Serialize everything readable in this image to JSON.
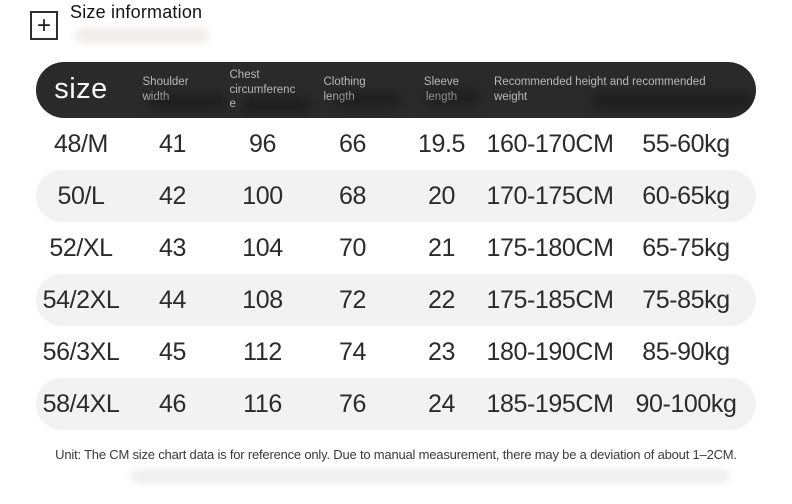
{
  "page": {
    "title": "Size information",
    "note": "Unit: The CM size chart data is for reference only. Due to manual measurement, there may be a deviation of about 1–2CM."
  },
  "icons": {
    "plus_icon": "+"
  },
  "colors": {
    "header_bg": "#2a2a2a",
    "header_text": "#b9b9b9",
    "row_stripe": "#f2f2f2",
    "body_text": "#2b2b2b"
  },
  "table": {
    "header": {
      "size": "size",
      "shoulder": "Shoulder width",
      "chest": "Chest circumference",
      "clothing": "Clothing length",
      "sleeve": "Sleeve length",
      "recommended": "Recommended height and recommended weight"
    },
    "rows": [
      [
        "48/M",
        "41",
        "96",
        "66",
        "19.5",
        "160-170CM",
        "55-60kg"
      ],
      [
        "50/L",
        "42",
        "100",
        "68",
        "20",
        "170-175CM",
        "60-65kg"
      ],
      [
        "52/XL",
        "43",
        "104",
        "70",
        "21",
        "175-180CM",
        "65-75kg"
      ],
      [
        "54/2XL",
        "44",
        "108",
        "72",
        "22",
        "175-185CM",
        "75-85kg"
      ],
      [
        "56/3XL",
        "45",
        "112",
        "74",
        "23",
        "180-190CM",
        "85-90kg"
      ],
      [
        "58/4XL",
        "46",
        "116",
        "76",
        "24",
        "185-195CM",
        "90-100kg"
      ]
    ]
  }
}
